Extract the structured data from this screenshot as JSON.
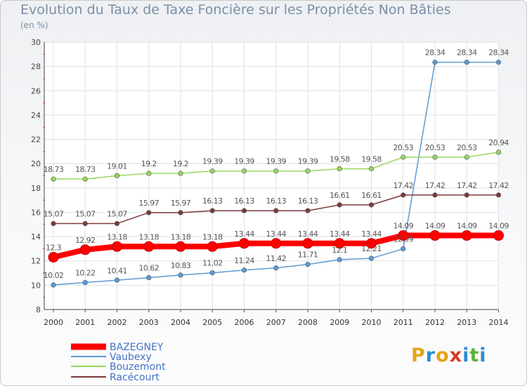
{
  "title": "Evolution du Taux de Taxe Foncière sur les Propriétés Non Bâties",
  "unit": "(en %)",
  "logo": {
    "text": "Proxiti",
    "colors": [
      "#e6a21a",
      "#2a8dd4",
      "#e6a21a",
      "#d63a2a",
      "#2a8dd4",
      "#5db33a",
      "#2a8dd4"
    ]
  },
  "chart_data": {
    "type": "line",
    "x": [
      "2000",
      "2001",
      "2002",
      "2003",
      "2004",
      "2005",
      "2006",
      "2007",
      "2008",
      "2009",
      "2010",
      "2011",
      "2012",
      "2013",
      "2014"
    ],
    "ylim": [
      8,
      30
    ],
    "yticks": [
      8,
      10,
      12,
      14,
      16,
      18,
      20,
      22,
      24,
      26,
      28,
      30
    ],
    "grid": true,
    "legend_position": "bottom-left",
    "series": [
      {
        "name": "BAZEGNEY",
        "color": "#ff0000",
        "labels": [
          "12.3",
          "12.92",
          "13.18",
          "13.18",
          "13.18",
          "13.18",
          "13.44",
          "13.44",
          "13.44",
          "13.44",
          "13.44",
          "14.09",
          "14.09",
          "14.09",
          "14.09"
        ],
        "values": [
          12.3,
          12.92,
          13.18,
          13.18,
          13.18,
          13.18,
          13.44,
          13.44,
          13.44,
          13.44,
          13.44,
          14.09,
          14.09,
          14.09,
          14.09
        ]
      },
      {
        "name": "Vaubexy",
        "color": "#5b9bd5",
        "labels": [
          "10.02",
          "10.22",
          "10.41",
          "10.62",
          "10.83",
          "11.02",
          "11.24",
          "11.42",
          "11.71",
          "12.1",
          "12.21",
          "12.99",
          "28.34",
          "28.34",
          "28.34"
        ],
        "values": [
          10.02,
          10.22,
          10.41,
          10.62,
          10.83,
          11.02,
          11.24,
          11.42,
          11.71,
          12.1,
          12.21,
          12.99,
          28.34,
          28.34,
          28.34
        ]
      },
      {
        "name": "Bouzemont",
        "color": "#99d65e",
        "labels": [
          "18.73",
          "18.73",
          "19.01",
          "19.2",
          "19.2",
          "19.39",
          "19.39",
          "19.39",
          "19.39",
          "19.58",
          "19.58",
          "20.53",
          "20.53",
          "20.53",
          "20.94"
        ],
        "values": [
          18.73,
          18.73,
          19.01,
          19.2,
          19.2,
          19.39,
          19.39,
          19.39,
          19.39,
          19.58,
          19.58,
          20.53,
          20.53,
          20.53,
          20.94
        ]
      },
      {
        "name": "Racécourt",
        "color": "#7b3b3b",
        "labels": [
          "15.07",
          "15.07",
          "15.07",
          "15.97",
          "15.97",
          "16.13",
          "16.13",
          "16.13",
          "16.13",
          "16.61",
          "16.61",
          "17.42",
          "17.42",
          "17.42",
          "17.42"
        ],
        "values": [
          15.07,
          15.07,
          15.07,
          15.97,
          15.97,
          16.13,
          16.13,
          16.13,
          16.13,
          16.61,
          16.61,
          17.42,
          17.42,
          17.42,
          17.42
        ]
      }
    ]
  }
}
